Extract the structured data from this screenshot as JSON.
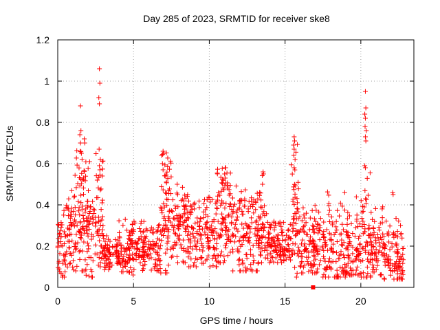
{
  "chart_data": {
    "type": "scatter",
    "title": "Day 285 of 2023, SRMTID for receiver ske8",
    "xlabel": "GPS time / hours",
    "ylabel": "SRMTID / TECUs",
    "xlim": [
      0,
      23.5
    ],
    "ylim": [
      0,
      1.2
    ],
    "xticks": [
      0,
      5,
      10,
      15,
      20
    ],
    "xtick_labels": [
      "0",
      "5",
      "10",
      "15",
      "20"
    ],
    "yticks": [
      0,
      0.2,
      0.4,
      0.6,
      0.8,
      1.0,
      1.2
    ],
    "ytick_labels": [
      "0",
      "0.2",
      "0.4",
      "0.6",
      "0.8",
      "1",
      "1.2"
    ],
    "grid": true,
    "marker": "plus",
    "color": "#ff0000",
    "series": [
      {
        "name": "SRMTID",
        "outliers": [
          [
            16.85,
            0.0
          ]
        ],
        "envelope": [
          {
            "x0": 0.0,
            "x1": 0.5,
            "lo": 0.05,
            "hi": 0.4,
            "center": 0.18,
            "n": 40
          },
          {
            "x0": 0.5,
            "x1": 1.2,
            "lo": 0.08,
            "hi": 0.55,
            "center": 0.25,
            "n": 60
          },
          {
            "x0": 1.2,
            "x1": 1.8,
            "lo": 0.08,
            "hi": 0.76,
            "center": 0.33,
            "n": 60
          },
          {
            "x0": 1.8,
            "x1": 2.3,
            "lo": 0.05,
            "hi": 0.72,
            "center": 0.3,
            "n": 50
          },
          {
            "x0": 2.3,
            "x1": 3.0,
            "lo": 0.1,
            "hi": 0.67,
            "center": 0.32,
            "n": 60
          },
          {
            "x0": 3.0,
            "x1": 4.0,
            "lo": 0.05,
            "hi": 0.25,
            "center": 0.14,
            "n": 70
          },
          {
            "x0": 4.0,
            "x1": 5.0,
            "lo": 0.06,
            "hi": 0.33,
            "center": 0.18,
            "n": 80
          },
          {
            "x0": 5.0,
            "x1": 6.8,
            "lo": 0.08,
            "hi": 0.32,
            "center": 0.19,
            "n": 130
          },
          {
            "x0": 6.8,
            "x1": 7.5,
            "lo": 0.07,
            "hi": 0.66,
            "center": 0.38,
            "n": 70
          },
          {
            "x0": 7.5,
            "x1": 8.5,
            "lo": 0.12,
            "hi": 0.5,
            "center": 0.3,
            "n": 80
          },
          {
            "x0": 8.5,
            "x1": 10.5,
            "lo": 0.1,
            "hi": 0.45,
            "center": 0.26,
            "n": 150
          },
          {
            "x0": 10.5,
            "x1": 11.5,
            "lo": 0.12,
            "hi": 0.58,
            "center": 0.33,
            "n": 90
          },
          {
            "x0": 11.5,
            "x1": 13.3,
            "lo": 0.08,
            "hi": 0.5,
            "center": 0.26,
            "n": 140
          },
          {
            "x0": 13.3,
            "x1": 13.8,
            "lo": 0.12,
            "hi": 0.56,
            "center": 0.26,
            "n": 40
          },
          {
            "x0": 13.8,
            "x1": 15.4,
            "lo": 0.12,
            "hi": 0.34,
            "center": 0.21,
            "n": 120
          },
          {
            "x0": 15.4,
            "x1": 15.9,
            "lo": 0.05,
            "hi": 0.73,
            "center": 0.3,
            "n": 50
          },
          {
            "x0": 15.9,
            "x1": 17.5,
            "lo": 0.07,
            "hi": 0.4,
            "center": 0.2,
            "n": 120
          },
          {
            "x0": 17.5,
            "x1": 19.0,
            "lo": 0.05,
            "hi": 0.47,
            "center": 0.17,
            "n": 110
          },
          {
            "x0": 19.0,
            "x1": 20.0,
            "lo": 0.06,
            "hi": 0.45,
            "center": 0.17,
            "n": 80
          },
          {
            "x0": 20.0,
            "x1": 20.7,
            "lo": 0.05,
            "hi": 0.6,
            "center": 0.2,
            "n": 60
          },
          {
            "x0": 20.7,
            "x1": 21.5,
            "lo": 0.06,
            "hi": 0.4,
            "center": 0.18,
            "n": 60
          },
          {
            "x0": 21.5,
            "x1": 22.8,
            "lo": 0.04,
            "hi": 0.35,
            "center": 0.13,
            "n": 100
          }
        ],
        "spikes": [
          {
            "x": 1.5,
            "values": [
              0.88,
              0.76,
              0.74,
              0.7,
              0.66,
              0.65
            ]
          },
          {
            "x": 1.75,
            "values": [
              0.72,
              0.7
            ]
          },
          {
            "x": 2.75,
            "values": [
              1.06,
              0.99,
              0.92,
              0.89,
              0.67,
              0.62,
              0.59,
              0.57
            ]
          },
          {
            "x": 6.95,
            "values": [
              0.66,
              0.65,
              0.6,
              0.57
            ]
          },
          {
            "x": 11.05,
            "values": [
              0.58,
              0.58,
              0.55,
              0.53
            ]
          },
          {
            "x": 13.55,
            "values": [
              0.56,
              0.55,
              0.5
            ]
          },
          {
            "x": 15.6,
            "values": [
              0.73,
              0.71,
              0.69,
              0.67,
              0.64,
              0.62,
              0.58
            ]
          },
          {
            "x": 20.3,
            "values": [
              0.95,
              0.87,
              0.84,
              0.82,
              0.78,
              0.76,
              0.73,
              0.71,
              0.59,
              0.58
            ]
          },
          {
            "x": 22.1,
            "values": [
              0.46,
              0.45
            ]
          }
        ]
      }
    ]
  }
}
